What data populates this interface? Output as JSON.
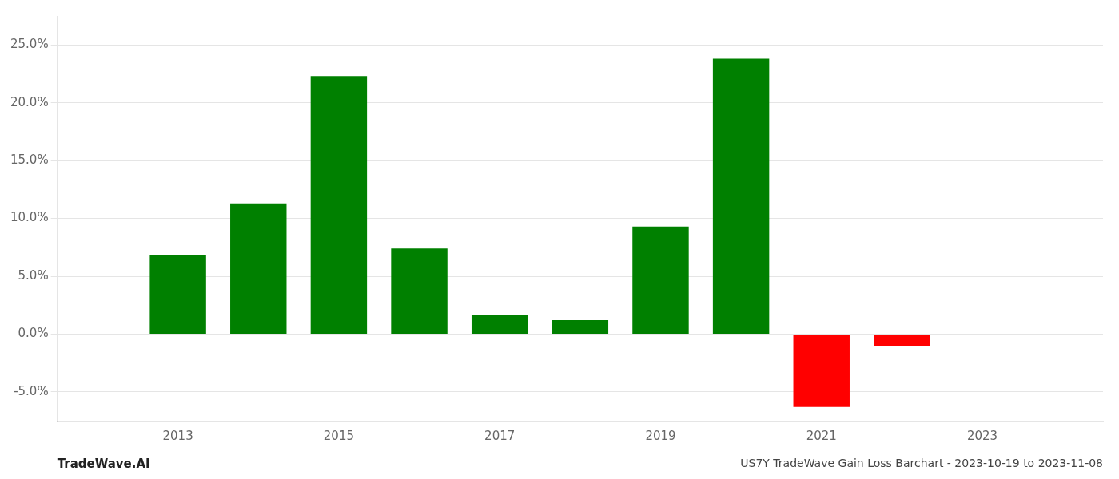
{
  "chart_data": {
    "type": "bar",
    "title": "US7Y TradeWave Gain Loss Barchart - 2023-10-19 to 2023-11-08",
    "annotations": [
      "TradeWave.AI"
    ],
    "x": [
      2013,
      2014,
      2015,
      2016,
      2017,
      2018,
      2019,
      2020,
      2021,
      2022,
      2023
    ],
    "values": [
      0.068,
      0.113,
      0.223,
      0.074,
      0.017,
      0.012,
      0.093,
      0.238,
      -0.063,
      -0.01,
      0.0
    ],
    "colors": [
      "#008000",
      "#008000",
      "#008000",
      "#008000",
      "#008000",
      "#008000",
      "#008000",
      "#008000",
      "#ff0000",
      "#ff0000",
      "#ff0000"
    ],
    "xlim": [
      2011.5,
      2024.5
    ],
    "xticks": [
      2013,
      2015,
      2017,
      2019,
      2021,
      2023
    ],
    "ylim": [
      -0.075,
      0.275
    ],
    "yticks": [
      {
        "value": -0.05,
        "label": "-5.0%"
      },
      {
        "value": 0.0,
        "label": "0.0%"
      },
      {
        "value": 0.05,
        "label": "5.0%"
      },
      {
        "value": 0.1,
        "label": "10.0%"
      },
      {
        "value": 0.15,
        "label": "15.0%"
      },
      {
        "value": 0.2,
        "label": "20.0%"
      },
      {
        "value": 0.25,
        "label": "25.0%"
      }
    ],
    "grid": true
  }
}
